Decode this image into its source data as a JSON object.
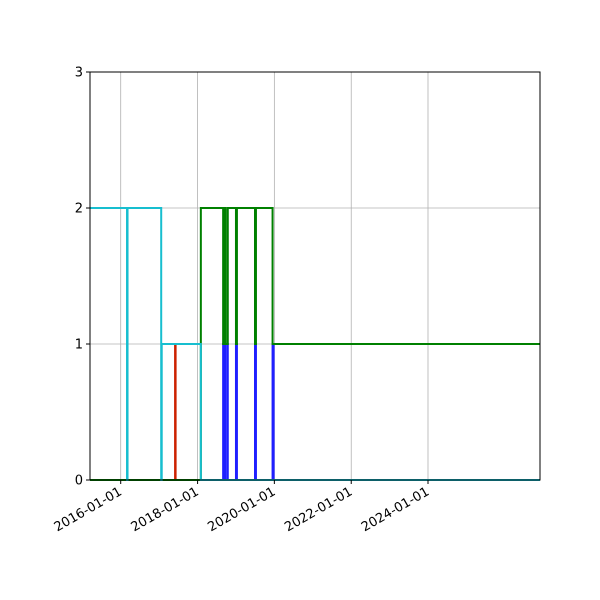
{
  "chart_data": {
    "type": "line",
    "step": "post",
    "title": "",
    "xlabel": "",
    "ylabel": "",
    "x_axis": "date",
    "xlim": [
      "2015-03-15",
      "2026-12-01"
    ],
    "ylim": [
      0,
      3
    ],
    "grid": true,
    "x_ticks": [
      "2016-01-01",
      "2018-01-01",
      "2020-01-01",
      "2022-01-01",
      "2024-01-01"
    ],
    "y_ticks": [
      0,
      1,
      2,
      3
    ],
    "series": [
      {
        "color": "#1f1fff",
        "points": [
          [
            "2015-03-15",
            0
          ],
          [
            "2018-09-01",
            1
          ],
          [
            "2018-09-20",
            0
          ],
          [
            "2018-09-25",
            1
          ],
          [
            "2018-10-15",
            0
          ],
          [
            "2019-01-01",
            1
          ],
          [
            "2019-01-10",
            0
          ],
          [
            "2019-07-01",
            1
          ],
          [
            "2019-07-10",
            0
          ],
          [
            "2019-12-15",
            1
          ],
          [
            "2019-12-25",
            0
          ],
          [
            "2026-12-01",
            0
          ]
        ]
      },
      {
        "color": "#cc2200",
        "points": [
          [
            "2015-03-15",
            0
          ],
          [
            "2017-06-01",
            1
          ],
          [
            "2017-06-06",
            0
          ],
          [
            "2026-12-01",
            0
          ]
        ]
      },
      {
        "color": "#008000",
        "points": [
          [
            "2015-03-15",
            0
          ],
          [
            "2018-02-01",
            2
          ],
          [
            "2018-09-01",
            1
          ],
          [
            "2018-09-20",
            2
          ],
          [
            "2018-09-25",
            1
          ],
          [
            "2018-10-15",
            2
          ],
          [
            "2019-01-01",
            1
          ],
          [
            "2019-01-10",
            2
          ],
          [
            "2019-07-01",
            1
          ],
          [
            "2019-07-10",
            2
          ],
          [
            "2019-12-15",
            1
          ],
          [
            "2026-12-01",
            1
          ]
        ]
      },
      {
        "color": "#17becf",
        "points": [
          [
            "2015-03-15",
            2
          ],
          [
            "2016-03-01",
            0
          ],
          [
            "2016-03-06",
            2
          ],
          [
            "2017-01-20",
            0
          ],
          [
            "2017-01-25",
            1
          ],
          [
            "2018-02-01",
            0
          ],
          [
            "2026-12-01",
            0
          ]
        ]
      }
    ]
  }
}
